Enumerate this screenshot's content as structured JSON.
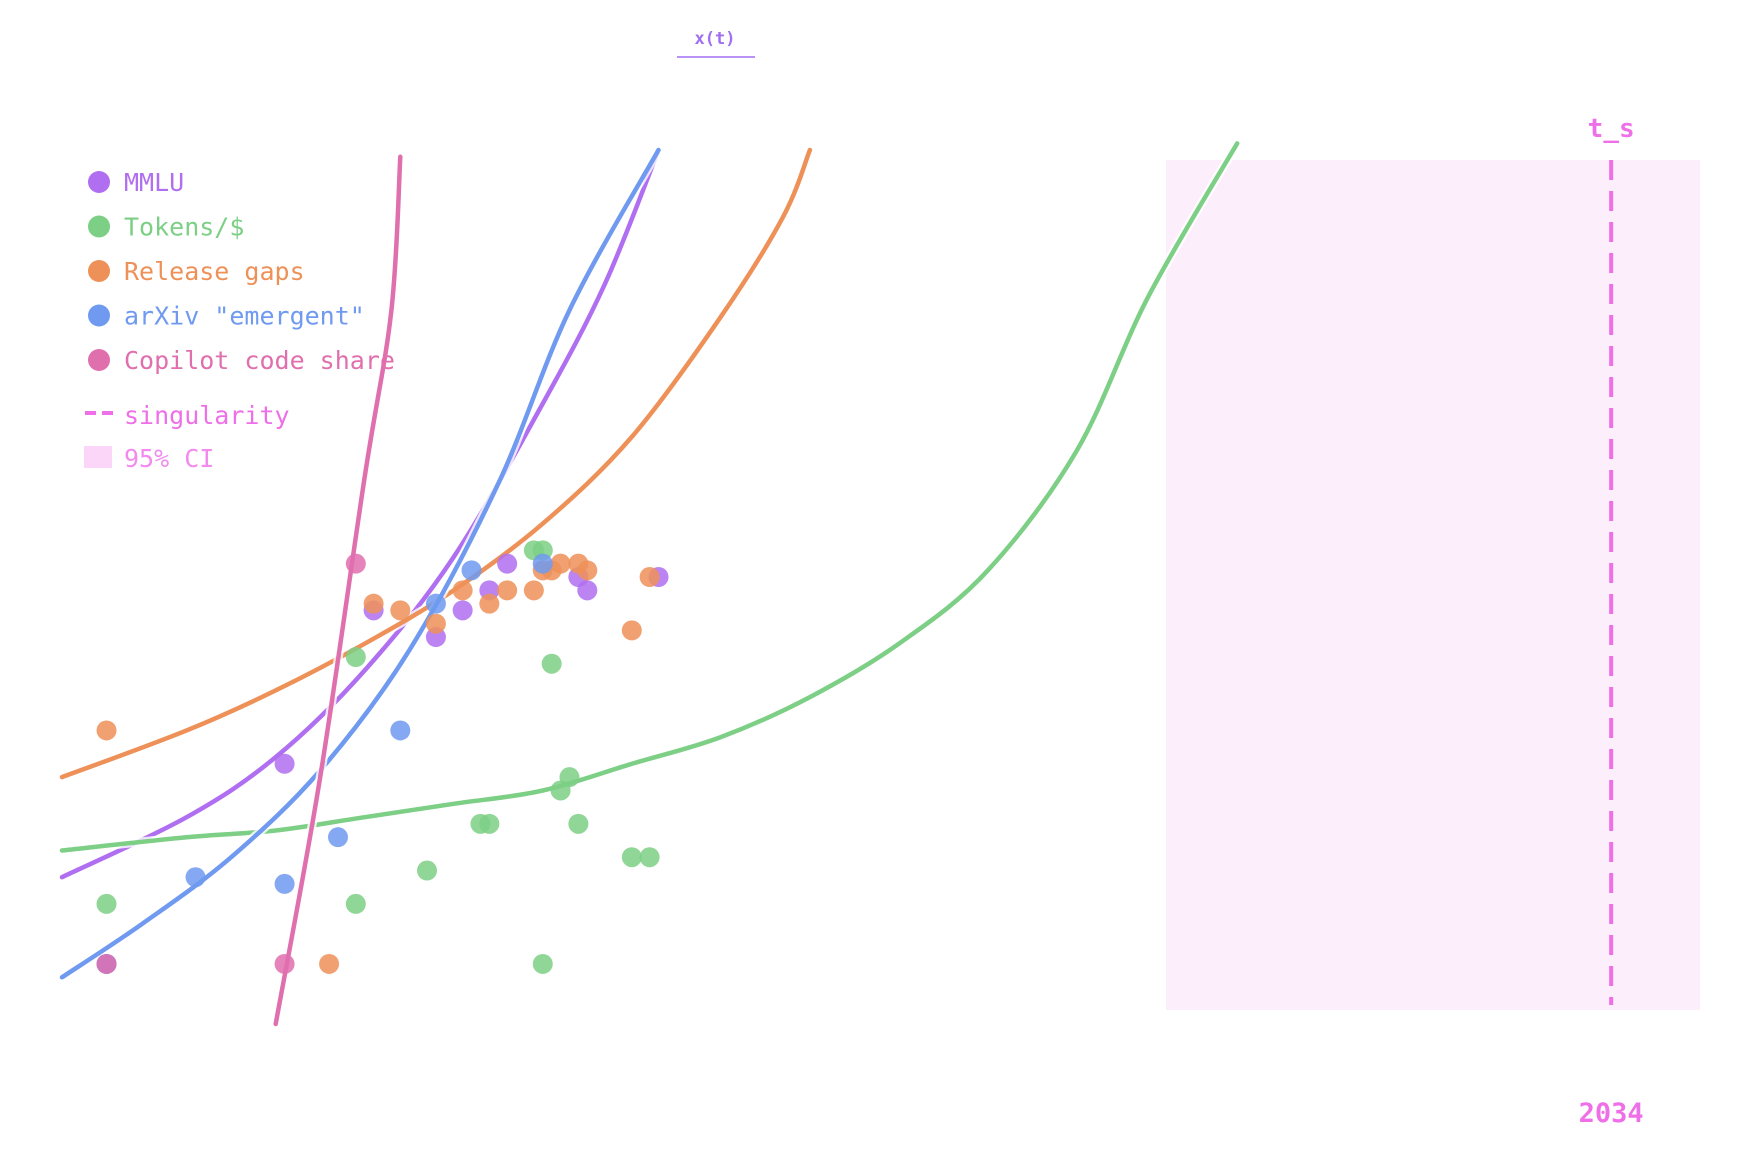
{
  "colors": {
    "mmlu": "#b06ef0",
    "tokens": "#7ccf85",
    "release": "#ee9158",
    "arxiv": "#6f9af0",
    "copilot": "#e06fae",
    "singularity": "#ee6fe8",
    "ci_fill": "#fdeefc",
    "title": "#a06ef0"
  },
  "chart_data": {
    "type": "scatter",
    "title": "x(t)",
    "xlabel": "",
    "ylabel": "",
    "grid": false,
    "legend_position": "top-left",
    "series": [
      {
        "name": "MMLU",
        "color_key": "mmlu",
        "points": [
          {
            "x": 2017.1,
            "y": 0.02
          },
          {
            "x": 2019.1,
            "y": 0.32
          },
          {
            "x": 2020.1,
            "y": 0.55
          },
          {
            "x": 2020.8,
            "y": 0.51
          },
          {
            "x": 2021.1,
            "y": 0.55
          },
          {
            "x": 2021.4,
            "y": 0.58
          },
          {
            "x": 2021.6,
            "y": 0.62
          },
          {
            "x": 2022.4,
            "y": 0.6
          },
          {
            "x": 2022.5,
            "y": 0.58
          },
          {
            "x": 2023.3,
            "y": 0.6
          }
        ],
        "fit": [
          {
            "x": 2016.6,
            "y": 0.15
          },
          {
            "x": 2018.0,
            "y": 0.24
          },
          {
            "x": 2019.0,
            "y": 0.33
          },
          {
            "x": 2020.0,
            "y": 0.46
          },
          {
            "x": 2021.0,
            "y": 0.63
          },
          {
            "x": 2022.0,
            "y": 0.86
          },
          {
            "x": 2022.7,
            "y": 1.04
          },
          {
            "x": 2023.3,
            "y": 1.24
          }
        ]
      },
      {
        "name": "Tokens/$",
        "color_key": "tokens",
        "points": [
          {
            "x": 2017.1,
            "y": 0.11
          },
          {
            "x": 2019.9,
            "y": 0.48
          },
          {
            "x": 2019.9,
            "y": 0.11
          },
          {
            "x": 2020.7,
            "y": 0.16
          },
          {
            "x": 2021.3,
            "y": 0.23
          },
          {
            "x": 2021.4,
            "y": 0.23
          },
          {
            "x": 2021.9,
            "y": 0.64
          },
          {
            "x": 2022.0,
            "y": 0.64
          },
          {
            "x": 2022.1,
            "y": 0.47
          },
          {
            "x": 2022.0,
            "y": 0.02
          },
          {
            "x": 2022.2,
            "y": 0.28
          },
          {
            "x": 2022.3,
            "y": 0.3
          },
          {
            "x": 2022.4,
            "y": 0.23
          },
          {
            "x": 2023.0,
            "y": 0.18
          },
          {
            "x": 2023.2,
            "y": 0.18
          }
        ],
        "fit": [
          {
            "x": 2016.6,
            "y": 0.19
          },
          {
            "x": 2018.0,
            "y": 0.21
          },
          {
            "x": 2019.0,
            "y": 0.22
          },
          {
            "x": 2020.0,
            "y": 0.24
          },
          {
            "x": 2021.0,
            "y": 0.26
          },
          {
            "x": 2022.0,
            "y": 0.28
          },
          {
            "x": 2023.0,
            "y": 0.32
          },
          {
            "x": 2024.0,
            "y": 0.36
          },
          {
            "x": 2025.0,
            "y": 0.42
          },
          {
            "x": 2026.0,
            "y": 0.5
          },
          {
            "x": 2027.0,
            "y": 0.61
          },
          {
            "x": 2028.0,
            "y": 0.79
          },
          {
            "x": 2028.8,
            "y": 1.02
          },
          {
            "x": 2029.8,
            "y": 1.25
          }
        ]
      },
      {
        "name": "Release gaps",
        "color_key": "release",
        "points": [
          {
            "x": 2017.1,
            "y": 0.37
          },
          {
            "x": 2019.6,
            "y": 0.02
          },
          {
            "x": 2020.1,
            "y": 0.56
          },
          {
            "x": 2020.4,
            "y": 0.55
          },
          {
            "x": 2020.8,
            "y": 0.53
          },
          {
            "x": 2021.1,
            "y": 0.58
          },
          {
            "x": 2021.4,
            "y": 0.56
          },
          {
            "x": 2021.6,
            "y": 0.58
          },
          {
            "x": 2021.9,
            "y": 0.58
          },
          {
            "x": 2022.0,
            "y": 0.61
          },
          {
            "x": 2022.1,
            "y": 0.61
          },
          {
            "x": 2022.2,
            "y": 0.62
          },
          {
            "x": 2022.4,
            "y": 0.62
          },
          {
            "x": 2022.5,
            "y": 0.61
          },
          {
            "x": 2023.0,
            "y": 0.52
          },
          {
            "x": 2023.2,
            "y": 0.6
          }
        ],
        "fit": [
          {
            "x": 2016.6,
            "y": 0.3
          },
          {
            "x": 2018.0,
            "y": 0.37
          },
          {
            "x": 2019.0,
            "y": 0.43
          },
          {
            "x": 2020.0,
            "y": 0.5
          },
          {
            "x": 2021.0,
            "y": 0.58
          },
          {
            "x": 2022.0,
            "y": 0.68
          },
          {
            "x": 2023.0,
            "y": 0.81
          },
          {
            "x": 2024.0,
            "y": 0.99
          },
          {
            "x": 2024.7,
            "y": 1.14
          },
          {
            "x": 2025.0,
            "y": 1.24
          }
        ]
      },
      {
        "name": "arXiv \"emergent\"",
        "color_key": "arxiv",
        "points": [
          {
            "x": 2017.1,
            "y": 0.02
          },
          {
            "x": 2018.1,
            "y": 0.15
          },
          {
            "x": 2019.1,
            "y": 0.14
          },
          {
            "x": 2019.7,
            "y": 0.21
          },
          {
            "x": 2020.4,
            "y": 0.37
          },
          {
            "x": 2020.8,
            "y": 0.56
          },
          {
            "x": 2021.2,
            "y": 0.61
          },
          {
            "x": 2022.0,
            "y": 0.62
          }
        ],
        "fit": [
          {
            "x": 2016.6,
            "y": 0.0
          },
          {
            "x": 2017.5,
            "y": 0.08
          },
          {
            "x": 2018.5,
            "y": 0.18
          },
          {
            "x": 2019.5,
            "y": 0.31
          },
          {
            "x": 2020.5,
            "y": 0.49
          },
          {
            "x": 2021.5,
            "y": 0.74
          },
          {
            "x": 2022.3,
            "y": 1.0
          },
          {
            "x": 2023.3,
            "y": 1.24
          }
        ]
      },
      {
        "name": "Copilot code share",
        "color_key": "copilot",
        "points": [
          {
            "x": 2017.1,
            "y": 0.02
          },
          {
            "x": 2019.1,
            "y": 0.02
          },
          {
            "x": 2019.9,
            "y": 0.62
          }
        ],
        "fit": [
          {
            "x": 2019.0,
            "y": -0.07
          },
          {
            "x": 2019.5,
            "y": 0.3
          },
          {
            "x": 2020.0,
            "y": 0.75
          },
          {
            "x": 2020.3,
            "y": 1.0
          },
          {
            "x": 2020.4,
            "y": 1.23
          }
        ]
      }
    ],
    "singularity": {
      "name": "singularity",
      "x": 2034,
      "label": "t_s",
      "tick_label": "2034"
    },
    "ci": {
      "name": "95% CI",
      "x_range": [
        2029.0,
        2035.0
      ]
    },
    "x_range": [
      2016.6,
      2035.2
    ],
    "y_range": [
      -0.1,
      1.3
    ]
  }
}
